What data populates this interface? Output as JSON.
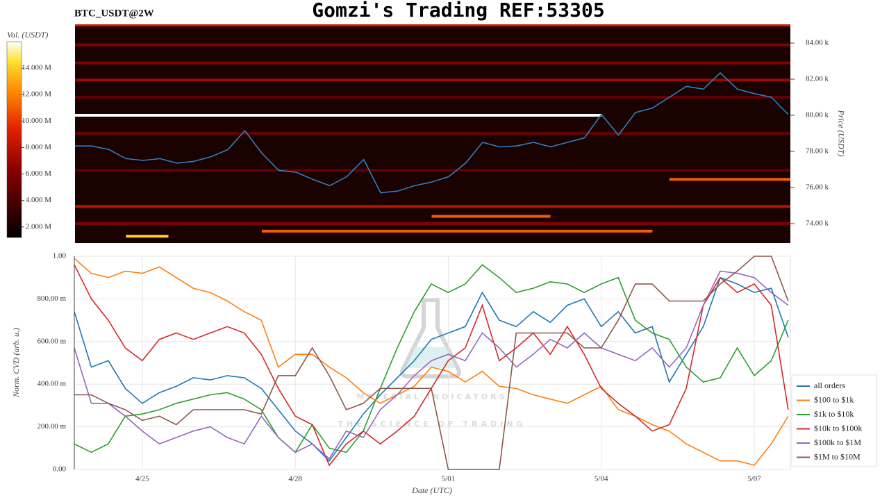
{
  "chart_data": [
    {
      "type": "heatmap",
      "title": "Gomzi's Trading REF:53305",
      "subtitle": "BTC_USDT@2W",
      "ylabel": "Price (USDT)",
      "xlim": [
        "04-23 16:00",
        "05-07 17:00"
      ],
      "ylim": [
        72920,
        85040
      ],
      "yticks": [
        {
          "value": 74000,
          "label": "74.00 k"
        },
        {
          "value": 76000,
          "label": "76.00 k"
        },
        {
          "value": 78000,
          "label": "78.00 k"
        },
        {
          "value": 80000,
          "label": "80.00 k"
        },
        {
          "value": 82000,
          "label": "82.00 k"
        },
        {
          "value": 84000,
          "label": "84.00 k"
        }
      ],
      "colorbar": {
        "label": "Vol. (USDT)",
        "lim": [
          1200000,
          16000000
        ],
        "ticks": [
          {
            "value": 2000000,
            "label": "2.000 M"
          },
          {
            "value": 4000000,
            "label": "4.000 M"
          },
          {
            "value": 6000000,
            "label": "6.000 M"
          },
          {
            "value": 8000000,
            "label": "8.000 M"
          },
          {
            "value": 10000000,
            "label": "10.000 M"
          },
          {
            "value": 12000000,
            "label": "12.000 M"
          },
          {
            "value": 14000000,
            "label": "14.000 M"
          }
        ]
      },
      "levels": [
        {
          "price": 85000,
          "volume": 9000000,
          "x": [
            "04-23 16:00",
            "05-07 17:00"
          ]
        },
        {
          "price": 83900,
          "volume": 6000000,
          "x": [
            "04-23 16:00",
            "05-07 17:00"
          ]
        },
        {
          "price": 82900,
          "volume": 6000000,
          "x": [
            "04-23 16:00",
            "05-07 17:00"
          ]
        },
        {
          "price": 81950,
          "volume": 7000000,
          "x": [
            "04-23 16:00",
            "05-07 17:00"
          ]
        },
        {
          "price": 81000,
          "volume": 5000000,
          "x": [
            "04-23 16:00",
            "05-07 17:00"
          ]
        },
        {
          "price": 80000,
          "volume": 16000000,
          "x": [
            "04-23 16:00",
            "05-04 00:00"
          ]
        },
        {
          "price": 79000,
          "volume": 5000000,
          "x": [
            "04-23 16:00",
            "05-07 17:00"
          ]
        },
        {
          "price": 76950,
          "volume": 5000000,
          "x": [
            "04-23 16:00",
            "05-07 17:00"
          ]
        },
        {
          "price": 76450,
          "volume": 11000000,
          "x": [
            "05-05 08:00",
            "05-07 17:00"
          ]
        },
        {
          "price": 74950,
          "volume": 8000000,
          "x": [
            "04-23 16:00",
            "05-07 17:00"
          ]
        },
        {
          "price": 74400,
          "volume": 11000000,
          "x": [
            "04-30 16:00",
            "05-03 00:00"
          ]
        },
        {
          "price": 74000,
          "volume": 6000000,
          "x": [
            "04-23 16:00",
            "05-07 17:00"
          ]
        },
        {
          "price": 73580,
          "volume": 11000000,
          "x": [
            "04-27 08:00",
            "05-04 24:00"
          ]
        },
        {
          "price": 73300,
          "volume": 14000000,
          "x": [
            "04-24 16:00",
            "04-25 12:00"
          ]
        }
      ],
      "line": {
        "color": "#2e7fc0",
        "values": [
          78300,
          78300,
          78100,
          77600,
          77500,
          77600,
          77350,
          77450,
          77700,
          78100,
          79150,
          77900,
          76950,
          76850,
          76450,
          76100,
          76600,
          77550,
          75700,
          75800,
          76100,
          76300,
          76600,
          77350,
          78500,
          78250,
          78300,
          78500,
          78250,
          78500,
          78750,
          80050,
          78900,
          80150,
          80400,
          81000,
          81600,
          81450,
          82350,
          81450,
          81200,
          81000,
          80050
        ]
      },
      "x": [
        "04-23 16:00",
        "04-24 00:00",
        "04-24 08:00",
        "04-24 16:00",
        "04-25 00:00",
        "04-25 08:00",
        "04-25 16:00",
        "04-26 00:00",
        "04-26 08:00",
        "04-26 16:00",
        "04-27 00:00",
        "04-27 08:00",
        "04-27 16:00",
        "04-28 00:00",
        "04-28 08:00",
        "04-28 16:00",
        "04-29 00:00",
        "04-29 08:00",
        "04-29 16:00",
        "04-30 00:00",
        "04-30 08:00",
        "04-30 16:00",
        "05-01 00:00",
        "05-01 08:00",
        "05-01 16:00",
        "05-02 00:00",
        "05-02 08:00",
        "05-02 16:00",
        "05-03 00:00",
        "05-03 08:00",
        "05-03 16:00",
        "05-04 00:00",
        "05-04 08:00",
        "05-04 16:00",
        "05-05 00:00",
        "05-05 08:00",
        "05-05 16:00",
        "05-06 00:00",
        "05-06 08:00",
        "05-06 16:00",
        "05-07 00:00",
        "05-07 08:00",
        "05-07 16:00"
      ]
    },
    {
      "type": "line",
      "xlabel": "Date (UTC)",
      "ylabel": "Norm. CVD (arb. u.)",
      "xlim": [
        "04-23 16:00",
        "05-07 17:00"
      ],
      "ylim": [
        0,
        1
      ],
      "xticks": [
        {
          "value": "04-25 00:00",
          "label": "4/25"
        },
        {
          "value": "04-28 00:00",
          "label": "4/28"
        },
        {
          "value": "05-01 00:00",
          "label": "5/01"
        },
        {
          "value": "05-04 00:00",
          "label": "5/04"
        },
        {
          "value": "05-07 00:00",
          "label": "5/07"
        }
      ],
      "yticks": [
        {
          "value": 0,
          "label": "0.00"
        },
        {
          "value": 0.2,
          "label": "200.00 m"
        },
        {
          "value": 0.4,
          "label": "400.00 m"
        },
        {
          "value": 0.6,
          "label": "600.00 m"
        },
        {
          "value": 0.8,
          "label": "800.00 m"
        },
        {
          "value": 1,
          "label": "1.00"
        }
      ],
      "grid": true,
      "legend": "right",
      "x": [
        "04-23 16:00",
        "04-24 00:00",
        "04-24 08:00",
        "04-24 16:00",
        "04-25 00:00",
        "04-25 08:00",
        "04-25 16:00",
        "04-26 00:00",
        "04-26 08:00",
        "04-26 16:00",
        "04-27 00:00",
        "04-27 08:00",
        "04-27 16:00",
        "04-28 00:00",
        "04-28 08:00",
        "04-28 16:00",
        "04-29 00:00",
        "04-29 08:00",
        "04-29 16:00",
        "04-30 00:00",
        "04-30 08:00",
        "04-30 16:00",
        "05-01 00:00",
        "05-01 08:00",
        "05-01 16:00",
        "05-02 00:00",
        "05-02 08:00",
        "05-02 16:00",
        "05-03 00:00",
        "05-03 08:00",
        "05-03 16:00",
        "05-04 00:00",
        "05-04 08:00",
        "05-04 16:00",
        "05-05 00:00",
        "05-05 08:00",
        "05-05 16:00",
        "05-06 00:00",
        "05-06 08:00",
        "05-06 16:00",
        "05-07 00:00",
        "05-07 08:00",
        "05-07 16:00"
      ],
      "series": [
        {
          "name": "all orders",
          "color": "#1f77b4",
          "values": [
            0.74,
            0.48,
            0.51,
            0.38,
            0.31,
            0.36,
            0.39,
            0.43,
            0.42,
            0.44,
            0.43,
            0.38,
            0.28,
            0.18,
            0.12,
            0.04,
            0.15,
            0.26,
            0.35,
            0.43,
            0.51,
            0.61,
            0.64,
            0.67,
            0.83,
            0.7,
            0.67,
            0.74,
            0.69,
            0.77,
            0.8,
            0.67,
            0.74,
            0.64,
            0.67,
            0.41,
            0.54,
            0.67,
            0.9,
            0.87,
            0.83,
            0.85,
            0.62
          ]
        },
        {
          "name": "$100 to $1k",
          "color": "#ff7f0e",
          "values": [
            0.99,
            0.92,
            0.9,
            0.93,
            0.92,
            0.95,
            0.9,
            0.85,
            0.83,
            0.79,
            0.74,
            0.7,
            0.48,
            0.54,
            0.54,
            0.48,
            0.43,
            0.36,
            0.31,
            0.35,
            0.39,
            0.48,
            0.46,
            0.41,
            0.46,
            0.39,
            0.38,
            0.35,
            0.33,
            0.31,
            0.35,
            0.39,
            0.28,
            0.25,
            0.21,
            0.18,
            0.12,
            0.08,
            0.04,
            0.04,
            0.02,
            0.12,
            0.25
          ]
        },
        {
          "name": "$1k to $10k",
          "color": "#2ca02c",
          "values": [
            0.12,
            0.08,
            0.12,
            0.25,
            0.26,
            0.28,
            0.31,
            0.33,
            0.35,
            0.36,
            0.33,
            0.28,
            0.15,
            0.08,
            0.21,
            0.1,
            0.08,
            0.18,
            0.38,
            0.57,
            0.74,
            0.87,
            0.83,
            0.87,
            0.96,
            0.9,
            0.83,
            0.85,
            0.88,
            0.87,
            0.83,
            0.87,
            0.9,
            0.7,
            0.64,
            0.61,
            0.48,
            0.41,
            0.43,
            0.57,
            0.44,
            0.51,
            0.7
          ]
        },
        {
          "name": "$10k to $100k",
          "color": "#d62728",
          "values": [
            0.96,
            0.8,
            0.7,
            0.57,
            0.51,
            0.61,
            0.64,
            0.61,
            0.64,
            0.67,
            0.64,
            0.54,
            0.38,
            0.25,
            0.21,
            0.02,
            0.12,
            0.18,
            0.12,
            0.18,
            0.25,
            0.38,
            0.51,
            0.57,
            0.77,
            0.51,
            0.57,
            0.64,
            0.54,
            0.67,
            0.54,
            0.38,
            0.31,
            0.25,
            0.18,
            0.21,
            0.38,
            0.77,
            0.9,
            0.83,
            0.87,
            0.77,
            0.28
          ]
        },
        {
          "name": "$100k to $1M",
          "color": "#9467bd",
          "values": [
            0.57,
            0.31,
            0.31,
            0.25,
            0.18,
            0.12,
            0.15,
            0.18,
            0.2,
            0.15,
            0.12,
            0.25,
            0.15,
            0.08,
            0.12,
            0.05,
            0.18,
            0.15,
            0.28,
            0.35,
            0.44,
            0.51,
            0.54,
            0.51,
            0.64,
            0.57,
            0.48,
            0.54,
            0.61,
            0.57,
            0.64,
            0.57,
            0.54,
            0.51,
            0.57,
            0.48,
            0.57,
            0.77,
            0.93,
            0.92,
            0.9,
            0.83,
            0.77
          ]
        },
        {
          "name": "$1M to $10M",
          "color": "#8c564b",
          "values": [
            0.35,
            0.35,
            0.31,
            0.28,
            0.23,
            0.25,
            0.21,
            0.28,
            0.28,
            0.28,
            0.28,
            0.26,
            0.44,
            0.44,
            0.57,
            0.44,
            0.28,
            0.31,
            0.38,
            0.38,
            0.38,
            0.38,
            0.0,
            0.0,
            0.0,
            0.0,
            0.64,
            0.64,
            0.64,
            0.64,
            0.57,
            0.57,
            0.7,
            0.87,
            0.87,
            0.79,
            0.79,
            0.79,
            0.87,
            0.93,
            1.0,
            1.0,
            0.79
          ]
        }
      ]
    }
  ],
  "watermark": {
    "text": "MATERIAL INDICATORS",
    "tagline": "THE SCIENCE OF TRADING"
  }
}
